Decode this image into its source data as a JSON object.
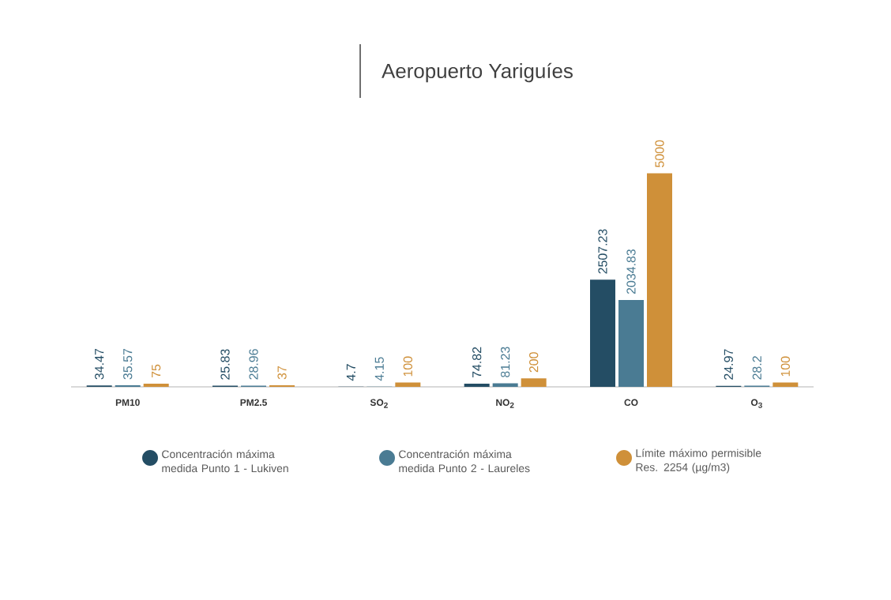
{
  "chart_data": {
    "type": "bar",
    "title": "Aeropuerto Yariguíes",
    "categories": [
      "PM10",
      "PM2.5",
      "SO$_{2}$",
      "NO$_{2}$",
      "CO",
      "O$_{3}$"
    ],
    "series": [
      {
        "name": "Concentración máxima medida Punto 1 - Lukiven",
        "color": "#244d64",
        "values": [
          34.47,
          25.83,
          4.7,
          74.82,
          2507.23,
          24.97
        ]
      },
      {
        "name": "Concentración máxima medida Punto 2 - Laureles",
        "color": "#4a7b93",
        "values": [
          35.57,
          28.96,
          4.15,
          81.23,
          2034.83,
          28.2
        ]
      },
      {
        "name": "Límite máximo permisible Res. 2254 (µg/m3)",
        "color": "#cf9039",
        "values": [
          75,
          37,
          100,
          200,
          5000,
          100
        ]
      }
    ],
    "data_labels": true,
    "legend": "bottom"
  }
}
